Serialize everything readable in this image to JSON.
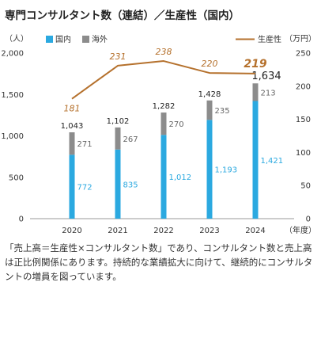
{
  "title": "専門コンサルタント数（連結）／生産性（国内）",
  "chart_data": {
    "type": "bar+line",
    "categories": [
      "2020",
      "2021",
      "2022",
      "2023",
      "2024"
    ],
    "series": [
      {
        "name": "国内",
        "type": "stacked-bar",
        "axis": "left",
        "color": "#2BA9E0",
        "values": [
          772,
          835,
          1012,
          1193,
          1421
        ],
        "labels": [
          "772",
          "835",
          "1,012",
          "1,193",
          "1,421"
        ]
      },
      {
        "name": "海外",
        "type": "stacked-bar",
        "axis": "left",
        "color": "#8C8C8C",
        "values": [
          271,
          267,
          270,
          235,
          213
        ],
        "labels": [
          "271",
          "267",
          "270",
          "235",
          "213"
        ]
      },
      {
        "name": "生産性",
        "type": "line",
        "axis": "right",
        "color": "#B5712D",
        "values": [
          181,
          231,
          238,
          220,
          219
        ],
        "labels": [
          "181",
          "231",
          "238",
          "220",
          "219"
        ]
      }
    ],
    "totals": {
      "values": [
        1043,
        1102,
        1282,
        1428,
        1634
      ],
      "labels": [
        "1,043",
        "1,102",
        "1,282",
        "1,428",
        "1,634"
      ]
    },
    "left_axis": {
      "unit": "（人）",
      "ylim": [
        0,
        2000
      ],
      "ticks": [
        0,
        500,
        1000,
        1500,
        2000
      ],
      "tick_labels": [
        "0",
        "500",
        "1,000",
        "1,500",
        "2,000"
      ]
    },
    "right_axis": {
      "unit": "（万円）",
      "ylim": [
        0,
        250
      ],
      "ticks": [
        0,
        50,
        100,
        150,
        200,
        250
      ],
      "tick_labels": [
        "0",
        "50",
        "100",
        "150",
        "200",
        "250"
      ]
    },
    "x_unit": "（年度）",
    "legend": [
      {
        "label": "国内",
        "color": "#2BA9E0",
        "kind": "square"
      },
      {
        "label": "海外",
        "color": "#8C8C8C",
        "kind": "square"
      },
      {
        "label": "生産性",
        "color": "#B5712D",
        "kind": "line"
      }
    ],
    "grid": false
  },
  "caption": "「売上高＝生産性×コンサルタント数」であり、コンサルタント数と売上高は正比例関係にあります。持続的な業績拡大に向けて、継続的にコンサルタントの増員を図っています。"
}
